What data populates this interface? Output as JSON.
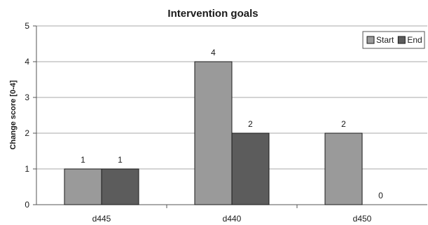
{
  "chart_data": {
    "type": "bar",
    "title": "Intervention goals",
    "xlabel": "",
    "ylabel": "Change score [0-4]",
    "categories": [
      "d445",
      "d440",
      "d450"
    ],
    "series": [
      {
        "name": "Start",
        "values": [
          1,
          4,
          2
        ],
        "color": "#9a9a9a"
      },
      {
        "name": "End",
        "values": [
          1,
          2,
          0
        ],
        "color": "#5c5c5c"
      }
    ],
    "ylim": [
      0,
      5
    ],
    "yticks": [
      "0",
      "1",
      "2",
      "3",
      "4",
      "5"
    ],
    "data_labels": [
      [
        "1",
        "4",
        "2"
      ],
      [
        "1",
        "2",
        "0"
      ]
    ],
    "grid": true,
    "legend_position": "top-right"
  }
}
